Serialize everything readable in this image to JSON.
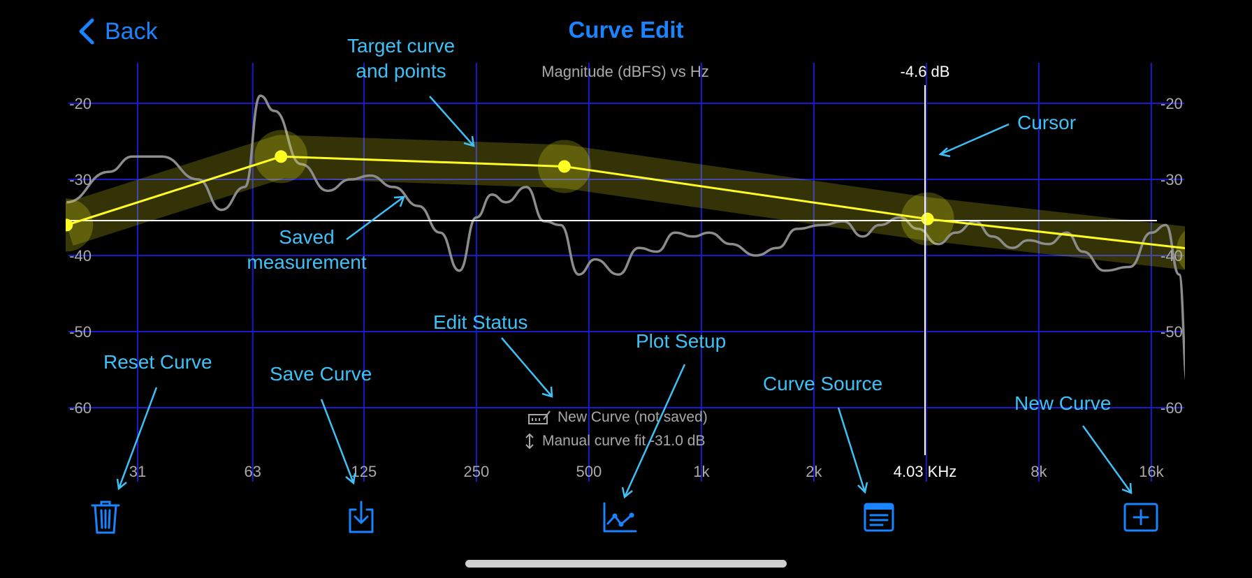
{
  "nav": {
    "back_label": "Back",
    "title": "Curve Edit"
  },
  "plot": {
    "title": "Magnitude (dBFS) vs Hz",
    "cursor_db": "-4.6 dB",
    "cursor_freq": "4.03 KHz",
    "x_ticks": [
      "31",
      "63",
      "125",
      "250",
      "500",
      "1k",
      "2k",
      "8k",
      "16k"
    ],
    "y_ticks": [
      "-20",
      "-30",
      "-40",
      "-50",
      "-60"
    ]
  },
  "chart_data": {
    "type": "line",
    "title": "Magnitude (dBFS) vs Hz",
    "x_scale": "log",
    "ylim": [
      -70,
      -15
    ],
    "series": [
      {
        "values_hz": [
          20,
          75,
          430,
          4030,
          22000
        ],
        "values_db": [
          -36,
          -27,
          -28.3,
          -35.2,
          -39.3
        ]
      },
      {
        "values_hz": [
          20,
          26,
          30,
          36,
          45,
          52,
          60,
          66,
          72,
          85,
          100,
          115,
          130,
          150,
          175,
          200,
          225,
          250,
          275,
          300,
          340,
          380,
          420,
          470,
          520,
          600,
          680,
          760,
          850,
          950,
          1050,
          1200,
          1400,
          1600,
          1800,
          2100,
          2400,
          2700,
          3000,
          3400,
          3800,
          4300,
          4800,
          5400,
          6000,
          6800,
          7500,
          8500,
          9500,
          10500,
          12000,
          14000,
          16000,
          17500,
          19000,
          20000,
          21000
        ],
        "values_db": [
          -33,
          -29,
          -27,
          -27,
          -30,
          -34,
          -31,
          -19,
          -21,
          -28,
          -31.5,
          -30,
          -29.5,
          -31,
          -33.5,
          -37,
          -42,
          -35,
          -32,
          -33,
          -31,
          -35.5,
          -36,
          -42.5,
          -40.5,
          -42.5,
          -39,
          -39.5,
          -37,
          -37.5,
          -37,
          -38.5,
          -40,
          -39,
          -36.5,
          -36,
          -35.5,
          -37.5,
          -36,
          -35,
          -36.5,
          -38.5,
          -37,
          -35.5,
          -37.5,
          -39,
          -38,
          -38.5,
          -37,
          -39.5,
          -42,
          -41.5,
          -37,
          -36,
          -42.5,
          -57,
          -68
        ]
      }
    ]
  },
  "annotations": {
    "target_curve": "Target curve\nand points",
    "cursor": "Cursor",
    "saved_measurement": "Saved\nmeasurement",
    "edit_status": "Edit Status",
    "plot_setup": "Plot Setup",
    "reset_curve": "Reset Curve",
    "save_curve": "Save Curve",
    "curve_source": "Curve Source",
    "new_curve": "New Curve"
  },
  "status": {
    "line1": "New Curve (not saved)",
    "line2": "Manual curve fit -31.0 dB"
  },
  "icons": {
    "reset": "trash-icon",
    "save": "download-tray-icon",
    "plot_setup": "line-chart-icon",
    "curve_source": "document-list-icon",
    "new_curve": "plus-square-icon"
  },
  "colors": {
    "accent": "#1a84ff",
    "annotation": "#3ec1f7",
    "grid": "#1a1acc",
    "target": "#ffff22",
    "measurement": "#8c8c8c"
  }
}
